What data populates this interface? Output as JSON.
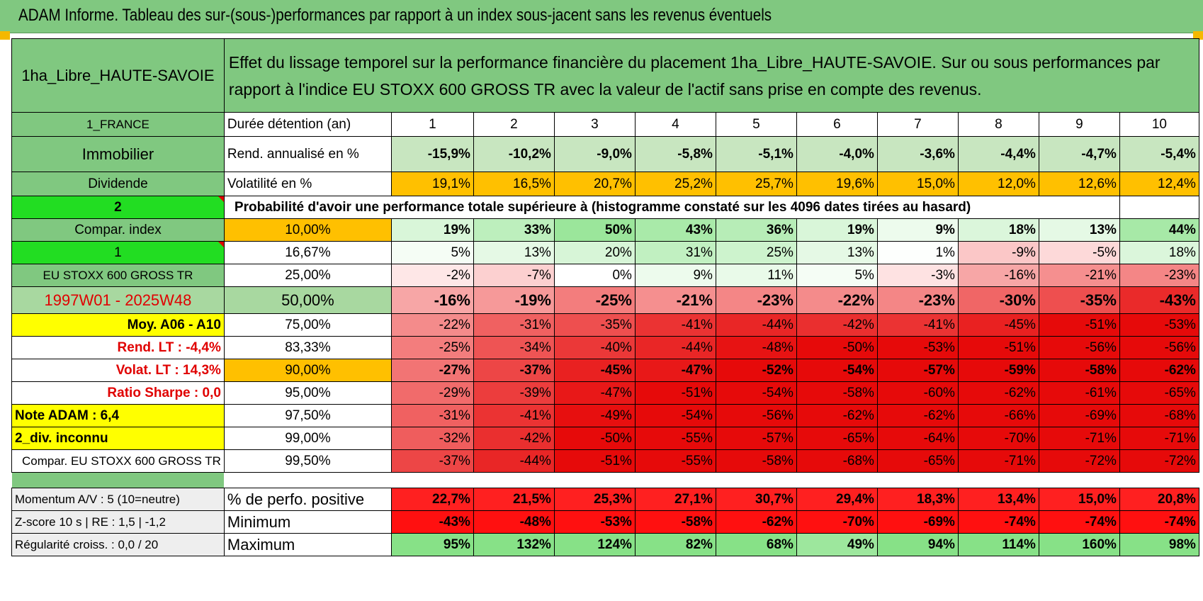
{
  "title": "ADAM Informe. Tableau des sur-(sous-)performances par rapport à un index sous-jacent sans les revenus éventuels",
  "header": {
    "asset": "1ha_Libre_HAUTE-SAVOIE",
    "description": "Effet du lissage temporel sur la performance financière du placement 1ha_Libre_HAUTE-SAVOIE. Sur ou sous performances par rapport à l'indice EU STOXX 600 GROSS TR avec la valeur de l'actif sans prise en compte des revenus."
  },
  "left": {
    "country": "1_FRANCE",
    "type": "Immobilier",
    "dividend": "Dividende",
    "num2": "2",
    "compar_index": "Compar. index",
    "num1": "1",
    "index_name": "EU STOXX 600 GROSS TR",
    "period": "1997W01 - 2025W48",
    "moy": "Moy. A06 - A10",
    "rend_lt": "Rend. LT :    -4,4%",
    "volat_lt": "Volat. LT :    14,3%",
    "sharpe": "Ratio Sharpe :     0,0",
    "note": "Note ADAM : 6,4",
    "div": "2_div. inconnu",
    "compar": "Compar. EU STOXX 600 GROSS TR",
    "momentum": "Momentum A/V : 5 (10=neutre)",
    "zscore": "Z-score 10 s | RE : 1,5 | -1,2",
    "regul": "Régularité croiss. : 0,0 / 20"
  },
  "row_labels": {
    "duree": "Durée détention (an)",
    "rend": "Rend. annualisé en %",
    "volat": "Volatilité en %",
    "proba": "Probabilité d'avoir une performance totale supérieure à (histogramme constaté sur les 4096 dates tirées au hasard)",
    "perf_pos": "% de perfo. positive",
    "minimum": "Minimum",
    "maximum": "Maximum"
  },
  "years": [
    "1",
    "2",
    "3",
    "4",
    "5",
    "6",
    "7",
    "8",
    "9",
    "10"
  ],
  "rend": [
    "-15,9%",
    "-10,2%",
    "-9,0%",
    "-5,8%",
    "-5,1%",
    "-4,0%",
    "-3,6%",
    "-4,4%",
    "-4,7%",
    "-5,4%"
  ],
  "volat": [
    "19,1%",
    "16,5%",
    "20,7%",
    "25,2%",
    "25,7%",
    "19,6%",
    "15,0%",
    "12,0%",
    "12,6%",
    "12,4%"
  ],
  "percentiles": [
    {
      "p": "10,00%",
      "vals": [
        "19%",
        "33%",
        "50%",
        "43%",
        "36%",
        "19%",
        "9%",
        "18%",
        "13%",
        "44%"
      ]
    },
    {
      "p": "16,67%",
      "vals": [
        "5%",
        "13%",
        "20%",
        "31%",
        "25%",
        "13%",
        "1%",
        "-9%",
        "-5%",
        "18%"
      ]
    },
    {
      "p": "25,00%",
      "vals": [
        "-2%",
        "-7%",
        "0%",
        "9%",
        "11%",
        "5%",
        "-3%",
        "-16%",
        "-21%",
        "-23%"
      ]
    },
    {
      "p": "50,00%",
      "vals": [
        "-16%",
        "-19%",
        "-25%",
        "-21%",
        "-23%",
        "-22%",
        "-23%",
        "-30%",
        "-35%",
        "-43%"
      ]
    },
    {
      "p": "75,00%",
      "vals": [
        "-22%",
        "-31%",
        "-35%",
        "-41%",
        "-44%",
        "-42%",
        "-41%",
        "-45%",
        "-51%",
        "-53%"
      ]
    },
    {
      "p": "83,33%",
      "vals": [
        "-25%",
        "-34%",
        "-40%",
        "-44%",
        "-48%",
        "-50%",
        "-53%",
        "-51%",
        "-56%",
        "-56%"
      ]
    },
    {
      "p": "90,00%",
      "vals": [
        "-27%",
        "-37%",
        "-45%",
        "-47%",
        "-52%",
        "-54%",
        "-57%",
        "-59%",
        "-58%",
        "-62%"
      ]
    },
    {
      "p": "95,00%",
      "vals": [
        "-29%",
        "-39%",
        "-47%",
        "-51%",
        "-54%",
        "-58%",
        "-60%",
        "-62%",
        "-61%",
        "-65%"
      ]
    },
    {
      "p": "97,50%",
      "vals": [
        "-31%",
        "-41%",
        "-49%",
        "-54%",
        "-56%",
        "-62%",
        "-62%",
        "-66%",
        "-69%",
        "-68%"
      ]
    },
    {
      "p": "99,00%",
      "vals": [
        "-32%",
        "-42%",
        "-50%",
        "-55%",
        "-57%",
        "-65%",
        "-64%",
        "-70%",
        "-71%",
        "-71%"
      ]
    },
    {
      "p": "99,50%",
      "vals": [
        "-37%",
        "-44%",
        "-51%",
        "-55%",
        "-58%",
        "-68%",
        "-65%",
        "-71%",
        "-72%",
        "-72%"
      ]
    }
  ],
  "perf_pos": [
    "22,7%",
    "21,5%",
    "25,3%",
    "27,1%",
    "30,7%",
    "29,4%",
    "18,3%",
    "13,4%",
    "15,0%",
    "20,8%"
  ],
  "minimum": [
    "-43%",
    "-48%",
    "-53%",
    "-58%",
    "-62%",
    "-70%",
    "-69%",
    "-74%",
    "-74%",
    "-74%"
  ],
  "maximum": [
    "95%",
    "132%",
    "124%",
    "82%",
    "68%",
    "49%",
    "94%",
    "114%",
    "160%",
    "98%"
  ]
}
